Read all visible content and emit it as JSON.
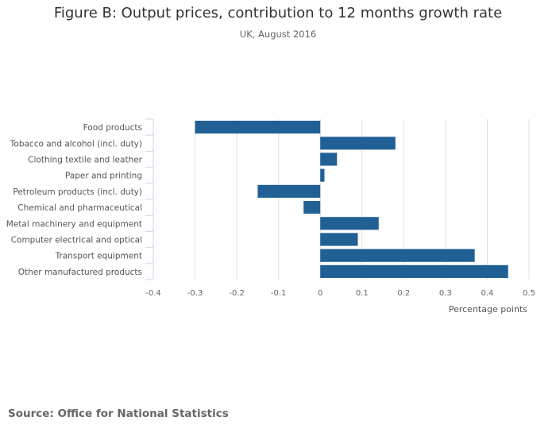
{
  "chart_data": {
    "type": "bar",
    "orientation": "horizontal",
    "title": "Figure B: Output prices, contribution to 12 months growth rate",
    "subtitle": "UK, August 2016",
    "xlabel": "Percentage points",
    "ylabel": "",
    "xlim": [
      -0.4,
      0.5
    ],
    "xticks": [
      -0.4,
      -0.3,
      -0.2,
      -0.1,
      0,
      0.1,
      0.2,
      0.3,
      0.4,
      0.5
    ],
    "xtick_labels": [
      "-0.4",
      "-0.3",
      "-0.2",
      "-0.1",
      "0",
      "0.1",
      "0.2",
      "0.3",
      "0.4",
      "0.5"
    ],
    "grid": true,
    "categories": [
      "Food products",
      "Tobacco and alcohol (incl. duty)",
      "Clothing textile and leather",
      "Paper and printing",
      "Petroleum products (incl. duty)",
      "Chemical and pharmaceutical",
      "Metal machinery and equipment",
      "Computer electrical and optical",
      "Transport equipment",
      "Other manufactured products"
    ],
    "values": [
      -0.3,
      0.18,
      0.04,
      0.01,
      -0.15,
      -0.04,
      0.14,
      0.09,
      0.37,
      0.45
    ],
    "bar_color": "#206095",
    "source": "Source: Office for National Statistics"
  }
}
